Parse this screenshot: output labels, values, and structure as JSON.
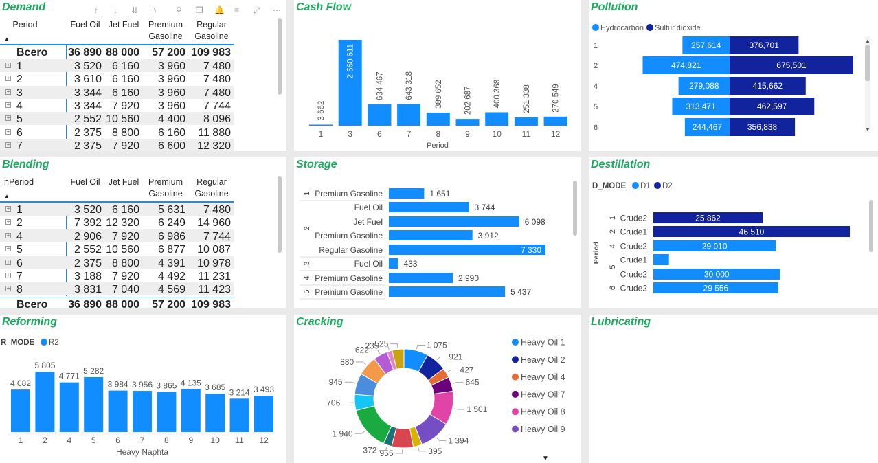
{
  "demand": {
    "title": "Demand",
    "columns": [
      "Period",
      "Fuel Oil",
      "Jet Fuel",
      "Premium Gasoline",
      "Regular Gasoline"
    ],
    "total": {
      "label": "Bcero",
      "values": [
        "36 890",
        "88 000",
        "57 200",
        "109 983"
      ]
    },
    "rows": [
      [
        "1",
        "3 520",
        "6 160",
        "3 960",
        "7 480"
      ],
      [
        "2",
        "3 610",
        "6 160",
        "3 960",
        "7 480"
      ],
      [
        "3",
        "3 344",
        "6 160",
        "3 960",
        "7 480"
      ],
      [
        "4",
        "3 344",
        "7 920",
        "3 960",
        "7 744"
      ],
      [
        "5",
        "2 552",
        "10 560",
        "4 400",
        "8 096"
      ],
      [
        "6",
        "2 375",
        "8 800",
        "6 160",
        "11 880"
      ],
      [
        "7",
        "2 375",
        "7 920",
        "6 600",
        "12 320"
      ]
    ],
    "toolbar_icons": [
      "arrow-up-icon",
      "arrow-down-icon",
      "double-arrow-down-icon",
      "expand-hierarchy-icon",
      "pin-icon",
      "copy-icon",
      "bell-icon",
      "filter-icon",
      "focus-mode-icon",
      "more-options-icon"
    ]
  },
  "cashflow": {
    "title": "Cash Flow",
    "chart_data": {
      "type": "bar",
      "title": "Cash Flow",
      "xlabel": "Period",
      "categories": [
        "1",
        "3",
        "6",
        "7",
        "8",
        "9",
        "10",
        "11",
        "12"
      ],
      "values": [
        3662,
        2560611,
        634467,
        643318,
        389652,
        202687,
        400368,
        251338,
        270549
      ],
      "labels": [
        "3 662",
        "2 560 611",
        "634 467",
        "643 318",
        "389 652",
        "202 687",
        "400 368",
        "251 338",
        "270 549"
      ],
      "color": "#118dff"
    }
  },
  "pollution": {
    "title": "Pollution",
    "chart_data": {
      "type": "bar",
      "orientation": "horizontal",
      "legend": [
        "Hydrocarbon",
        "Sulfur dioxide"
      ],
      "colors": [
        "#118dff",
        "#12239e"
      ],
      "categories": [
        "1",
        "2",
        "4",
        "5",
        "6"
      ],
      "series": [
        {
          "name": "Hydrocarbon",
          "values": [
            257614,
            474821,
            279088,
            313471,
            244467
          ],
          "labels": [
            "257,614",
            "474,821",
            "279,088",
            "313,471",
            "244,467"
          ]
        },
        {
          "name": "Sulfur dioxide",
          "values": [
            376701,
            675501,
            415662,
            462597,
            356838
          ],
          "labels": [
            "376,701",
            "675,501",
            "415,662",
            "462,597",
            "356,838"
          ]
        }
      ]
    }
  },
  "blending": {
    "title": "Blending",
    "columns": [
      "nPeriod",
      "Fuel Oil",
      "Jet Fuel",
      "Premium Gasoline",
      "Regular Gasoline"
    ],
    "rows": [
      [
        "1",
        "3 520",
        "6 160",
        "5 631",
        "7 480"
      ],
      [
        "2",
        "7 392",
        "12 320",
        "6 249",
        "14 960"
      ],
      [
        "4",
        "2 906",
        "7 920",
        "6 986",
        "7 744"
      ],
      [
        "5",
        "2 552",
        "10 560",
        "6 877",
        "10 087"
      ],
      [
        "6",
        "2 375",
        "8 800",
        "4 391",
        "10 978"
      ],
      [
        "7",
        "3 188",
        "7 920",
        "4 492",
        "11 231"
      ],
      [
        "8",
        "3 831",
        "7 040",
        "4 569",
        "11 423"
      ]
    ],
    "total": {
      "label": "Bcero",
      "values": [
        "36 890",
        "88 000",
        "57 200",
        "109 983"
      ]
    }
  },
  "storage": {
    "title": "Storage",
    "chart_data": {
      "type": "bar",
      "orientation": "horizontal",
      "color": "#118dff",
      "groups": [
        "1",
        "2",
        "3",
        "4",
        "5"
      ],
      "items": [
        {
          "group": "1",
          "label": "Premium Gasoline",
          "value": 1651,
          "text": "1 651"
        },
        {
          "group": "2",
          "label": "Fuel Oil",
          "value": 3744,
          "text": "3 744"
        },
        {
          "group": "2",
          "label": "Jet Fuel",
          "value": 6098,
          "text": "6 098"
        },
        {
          "group": "2",
          "label": "Premium Gasoline",
          "value": 3912,
          "text": "3 912"
        },
        {
          "group": "2",
          "label": "Regular Gasoline",
          "value": 7330,
          "text": "7 330"
        },
        {
          "group": "3",
          "label": "Fuel Oil",
          "value": 433,
          "text": "433"
        },
        {
          "group": "4",
          "label": "Premium Gasoline",
          "value": 2990,
          "text": "2 990"
        },
        {
          "group": "5",
          "label": "Premium Gasoline",
          "value": 5437,
          "text": "5 437"
        }
      ]
    }
  },
  "destillation": {
    "title": "Destillation",
    "legend_title": "D_MODE",
    "legend": [
      "D1",
      "D2"
    ],
    "colors": [
      "#118dff",
      "#12239e"
    ],
    "axis_label": "Period",
    "chart_data": {
      "type": "bar",
      "orientation": "horizontal",
      "items": [
        {
          "group": "1",
          "label": "Crude2",
          "value": 25862,
          "text": "25 862",
          "mode": "D2"
        },
        {
          "group": "2",
          "label": "Crude1",
          "value": 46510,
          "text": "46 510",
          "mode": "D2"
        },
        {
          "group": "4",
          "label": "Crude2",
          "value": 29010,
          "text": "29 010",
          "mode": "D1"
        },
        {
          "group": "5",
          "label": "Crude1",
          "value": 3700,
          "text": "",
          "mode": "D1"
        },
        {
          "group": "5",
          "label": "Crude2",
          "value": 30000,
          "text": "30 000",
          "mode": "D1"
        },
        {
          "group": "6",
          "label": "Crude2",
          "value": 29556,
          "text": "29 556",
          "mode": "D1"
        }
      ]
    }
  },
  "reforming": {
    "title": "Reforming",
    "legend_title": "R_MODE",
    "legend": [
      "R2"
    ],
    "chart_data": {
      "type": "bar",
      "xlabel": "Heavy Naphta",
      "color": "#118dff",
      "categories": [
        "1",
        "2",
        "4",
        "5",
        "6",
        "7",
        "8",
        "9",
        "10",
        "11",
        "12"
      ],
      "values": [
        4082,
        5805,
        4771,
        5282,
        3984,
        3956,
        3865,
        4135,
        3685,
        3214,
        3493
      ],
      "labels": [
        "4 082",
        "5 805",
        "4 771",
        "5 282",
        "3 984",
        "3 956",
        "3 865",
        "4 135",
        "3 685",
        "3 214",
        "3 493"
      ]
    }
  },
  "cracking": {
    "title": "Cracking",
    "legend": [
      {
        "name": "Heavy Oil 1",
        "color": "#118dff"
      },
      {
        "name": "Heavy Oil 2",
        "color": "#12239e"
      },
      {
        "name": "Heavy Oil 4",
        "color": "#e66c37"
      },
      {
        "name": "Heavy Oil 7",
        "color": "#6b007b"
      },
      {
        "name": "Heavy Oil 8",
        "color": "#e044a7"
      },
      {
        "name": "Heavy Oil 9",
        "color": "#744ec2"
      }
    ],
    "chart_data": {
      "type": "pie",
      "donut": true,
      "values": [
        1075,
        921,
        427,
        645,
        1501,
        1394,
        395,
        955,
        372,
        1940,
        706,
        945,
        880,
        622,
        235,
        525
      ],
      "labels": [
        "1 075",
        "921",
        "427",
        "645",
        "1 501",
        "1 394",
        "395",
        "955",
        "372",
        "1 940",
        "706",
        "945",
        "880",
        "622",
        "235",
        "525"
      ],
      "colors": [
        "#118dff",
        "#12239e",
        "#e66c37",
        "#6b007b",
        "#e044a7",
        "#744ec2",
        "#d9b300",
        "#d64550",
        "#197278",
        "#1aab40",
        "#15c6f4",
        "#4a8ddc",
        "#f2994a",
        "#b45cd6",
        "#e383d5",
        "#c8a415"
      ]
    }
  },
  "lubricating": {
    "title": "Lubricating"
  }
}
